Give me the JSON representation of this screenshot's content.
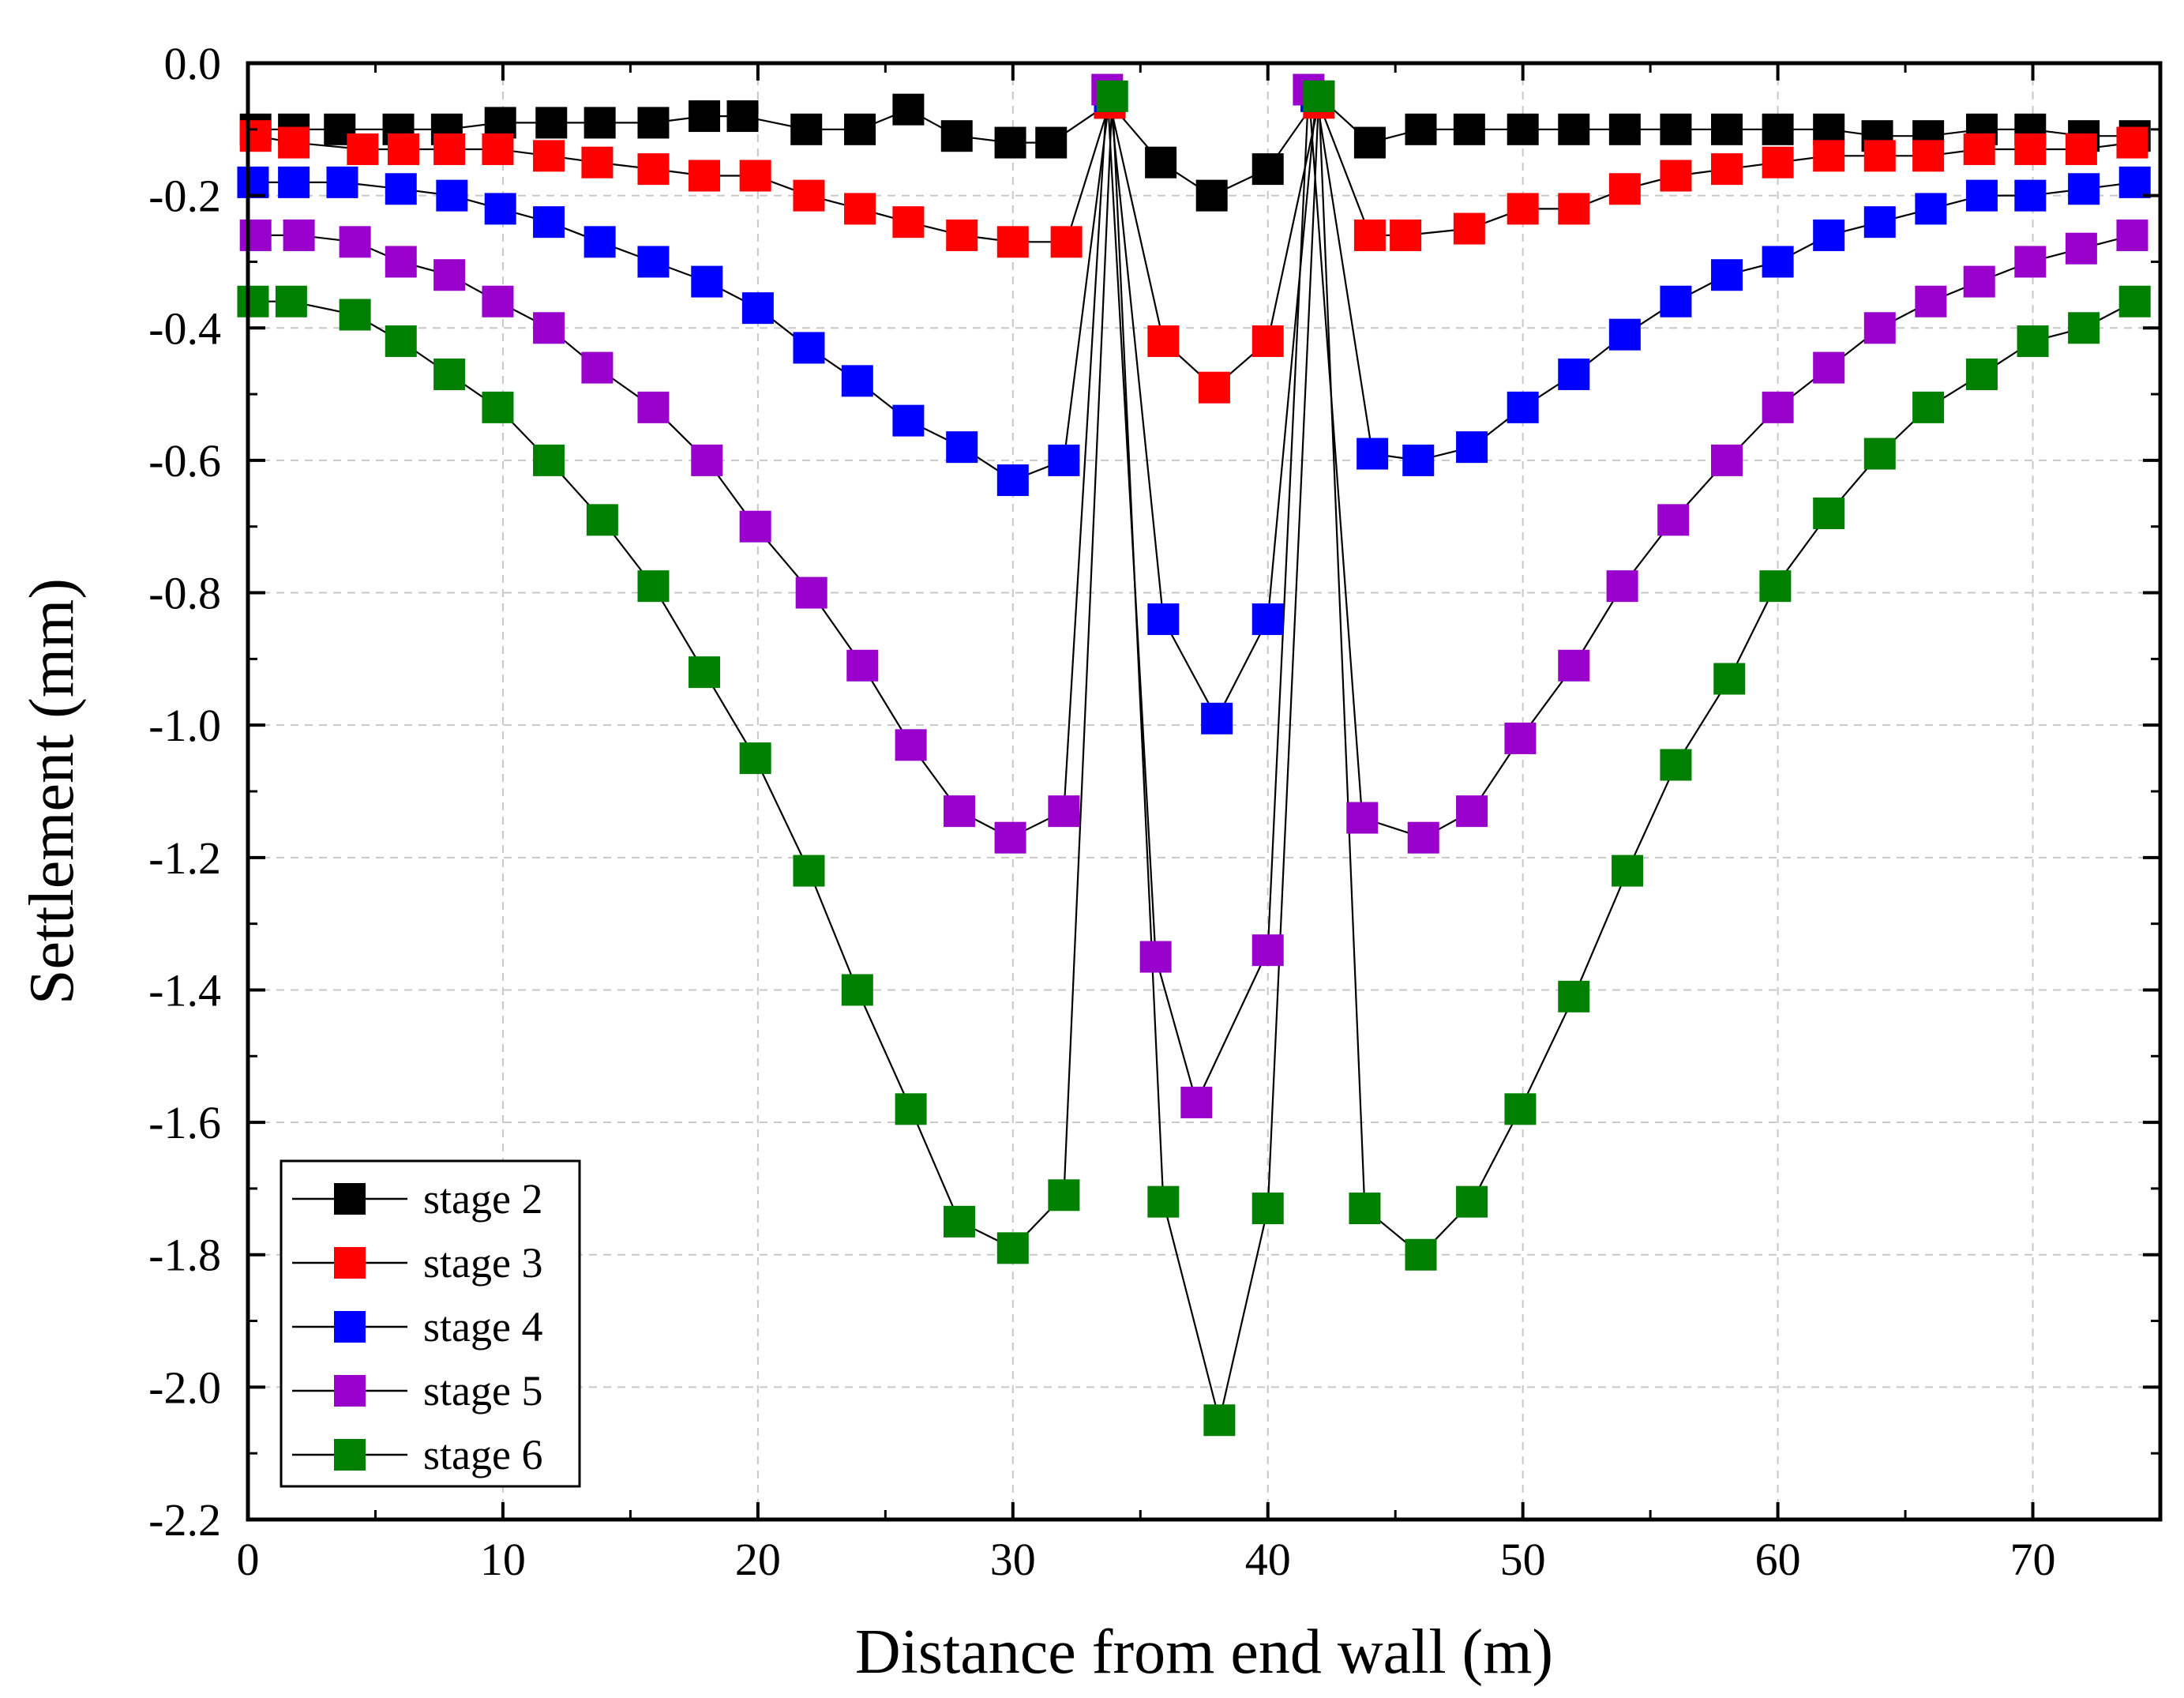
{
  "chart_data": {
    "type": "line",
    "title": "",
    "xlabel": "Distance from end wall (m)",
    "ylabel": "Settlement (mm)",
    "xlim": [
      0,
      75
    ],
    "ylim": [
      -2.2,
      0.0
    ],
    "grid": true,
    "legend_position": "bottom-left",
    "x_ticks": [
      0,
      10,
      20,
      30,
      40,
      50,
      60,
      70
    ],
    "x_tick_labels": [
      "0",
      "10",
      "20",
      "30",
      "40",
      "50",
      "60",
      "70"
    ],
    "y_ticks": [
      0.0,
      -0.2,
      -0.4,
      -0.6,
      -0.8,
      -1.0,
      -1.2,
      -1.4,
      -1.6,
      -1.8,
      -2.0,
      -2.2
    ],
    "y_tick_labels": [
      "0.0",
      "-0.2",
      "-0.4",
      "-0.6",
      "-0.8",
      "-1.0",
      "-1.2",
      "-1.4",
      "-1.6",
      "-1.8",
      "-2.0",
      "-2.2"
    ],
    "series": [
      {
        "name": "stage 2",
        "color": "#000000",
        "x": [
          0.3,
          1.8,
          3.6,
          5.9,
          7.8,
          9.9,
          11.9,
          13.8,
          15.9,
          17.9,
          19.4,
          21.9,
          24.0,
          25.9,
          27.8,
          29.9,
          31.5,
          33.8,
          35.8,
          37.8,
          40.0,
          42.0,
          44.0,
          46.0,
          47.9,
          50.0,
          52.0,
          54.0,
          56.0,
          58.0,
          60.0,
          62.0,
          63.9,
          65.9,
          68.0,
          69.9,
          72.0,
          74.0
        ],
        "values": [
          -0.1,
          -0.1,
          -0.1,
          -0.1,
          -0.1,
          -0.09,
          -0.09,
          -0.09,
          -0.09,
          -0.08,
          -0.08,
          -0.1,
          -0.1,
          -0.07,
          -0.11,
          -0.12,
          -0.12,
          -0.06,
          -0.15,
          -0.2,
          -0.16,
          -0.05,
          -0.12,
          -0.1,
          -0.1,
          -0.1,
          -0.1,
          -0.1,
          -0.1,
          -0.1,
          -0.1,
          -0.1,
          -0.11,
          -0.11,
          -0.1,
          -0.1,
          -0.11,
          -0.11
        ]
      },
      {
        "name": "stage 3",
        "color": "#ff0000",
        "x": [
          0.3,
          1.8,
          4.5,
          6.1,
          7.9,
          9.8,
          11.8,
          13.7,
          15.9,
          17.9,
          19.9,
          22.0,
          24.0,
          25.9,
          28.0,
          30.0,
          32.1,
          33.8,
          35.9,
          37.9,
          40.0,
          42.0,
          44.0,
          45.4,
          47.9,
          50.0,
          52.0,
          54.0,
          56.0,
          58.0,
          60.0,
          62.0,
          64.0,
          65.9,
          67.9,
          69.9,
          71.9,
          73.9
        ],
        "values": [
          -0.11,
          -0.12,
          -0.13,
          -0.13,
          -0.13,
          -0.13,
          -0.14,
          -0.15,
          -0.16,
          -0.17,
          -0.17,
          -0.2,
          -0.22,
          -0.24,
          -0.26,
          -0.27,
          -0.27,
          -0.06,
          -0.42,
          -0.49,
          -0.42,
          -0.06,
          -0.26,
          -0.26,
          -0.25,
          -0.22,
          -0.22,
          -0.19,
          -0.17,
          -0.16,
          -0.15,
          -0.14,
          -0.14,
          -0.14,
          -0.13,
          -0.13,
          -0.13,
          -0.12
        ]
      },
      {
        "name": "stage 4",
        "color": "#0000ff",
        "x": [
          0.2,
          1.8,
          3.7,
          6.0,
          8.0,
          9.9,
          11.8,
          13.8,
          15.9,
          18.0,
          20.0,
          22.0,
          23.9,
          25.9,
          28.0,
          30.0,
          32.0,
          33.8,
          35.9,
          38.0,
          40.0,
          41.9,
          44.1,
          45.9,
          48.0,
          50.0,
          52.0,
          54.0,
          56.0,
          58.0,
          60.0,
          62.0,
          64.0,
          66.0,
          68.0,
          69.9,
          72.0,
          74.0
        ],
        "values": [
          -0.18,
          -0.18,
          -0.18,
          -0.19,
          -0.2,
          -0.22,
          -0.24,
          -0.27,
          -0.3,
          -0.33,
          -0.37,
          -0.43,
          -0.48,
          -0.54,
          -0.58,
          -0.63,
          -0.6,
          -0.05,
          -0.84,
          -0.99,
          -0.84,
          -0.05,
          -0.59,
          -0.6,
          -0.58,
          -0.52,
          -0.47,
          -0.41,
          -0.36,
          -0.32,
          -0.3,
          -0.26,
          -0.24,
          -0.22,
          -0.2,
          -0.2,
          -0.19,
          -0.18
        ]
      },
      {
        "name": "stage 5",
        "color": "#9900cc",
        "x": [
          0.3,
          2.0,
          4.2,
          6.0,
          7.9,
          9.8,
          11.8,
          13.7,
          15.9,
          18.0,
          19.9,
          22.1,
          24.1,
          26.0,
          27.9,
          29.9,
          32.0,
          33.7,
          35.6,
          37.2,
          40.0,
          41.6,
          43.7,
          46.1,
          48.0,
          49.9,
          52.0,
          53.9,
          55.9,
          58.0,
          60.0,
          62.0,
          64.0,
          66.0,
          67.9,
          69.9,
          71.9,
          73.9
        ],
        "values": [
          -0.26,
          -0.26,
          -0.27,
          -0.3,
          -0.32,
          -0.36,
          -0.4,
          -0.46,
          -0.52,
          -0.6,
          -0.7,
          -0.8,
          -0.91,
          -1.03,
          -1.13,
          -1.17,
          -1.13,
          -0.04,
          -1.35,
          -1.57,
          -1.34,
          -0.04,
          -1.14,
          -1.17,
          -1.13,
          -1.02,
          -0.91,
          -0.79,
          -0.69,
          -0.6,
          -0.52,
          -0.46,
          -0.4,
          -0.36,
          -0.33,
          -0.3,
          -0.28,
          -0.26
        ]
      },
      {
        "name": "stage 6",
        "color": "#008000",
        "x": [
          0.2,
          1.7,
          4.2,
          6.0,
          7.9,
          9.8,
          11.8,
          13.9,
          15.9,
          17.9,
          19.9,
          22.0,
          23.9,
          26.0,
          27.9,
          30.0,
          32.0,
          33.9,
          35.9,
          38.1,
          40.0,
          42.0,
          43.8,
          46.0,
          48.0,
          49.9,
          52.0,
          54.1,
          56.0,
          58.1,
          59.9,
          62.0,
          64.0,
          65.9,
          68.0,
          70.0,
          72.0,
          74.0
        ],
        "values": [
          -0.36,
          -0.36,
          -0.38,
          -0.42,
          -0.47,
          -0.52,
          -0.6,
          -0.69,
          -0.79,
          -0.92,
          -1.05,
          -1.22,
          -1.4,
          -1.58,
          -1.75,
          -1.79,
          -1.71,
          -0.05,
          -1.72,
          -2.05,
          -1.73,
          -0.05,
          -1.73,
          -1.8,
          -1.72,
          -1.58,
          -1.41,
          -1.22,
          -1.06,
          -0.93,
          -0.79,
          -0.68,
          -0.59,
          -0.52,
          -0.47,
          -0.42,
          -0.4,
          -0.36
        ]
      }
    ]
  }
}
